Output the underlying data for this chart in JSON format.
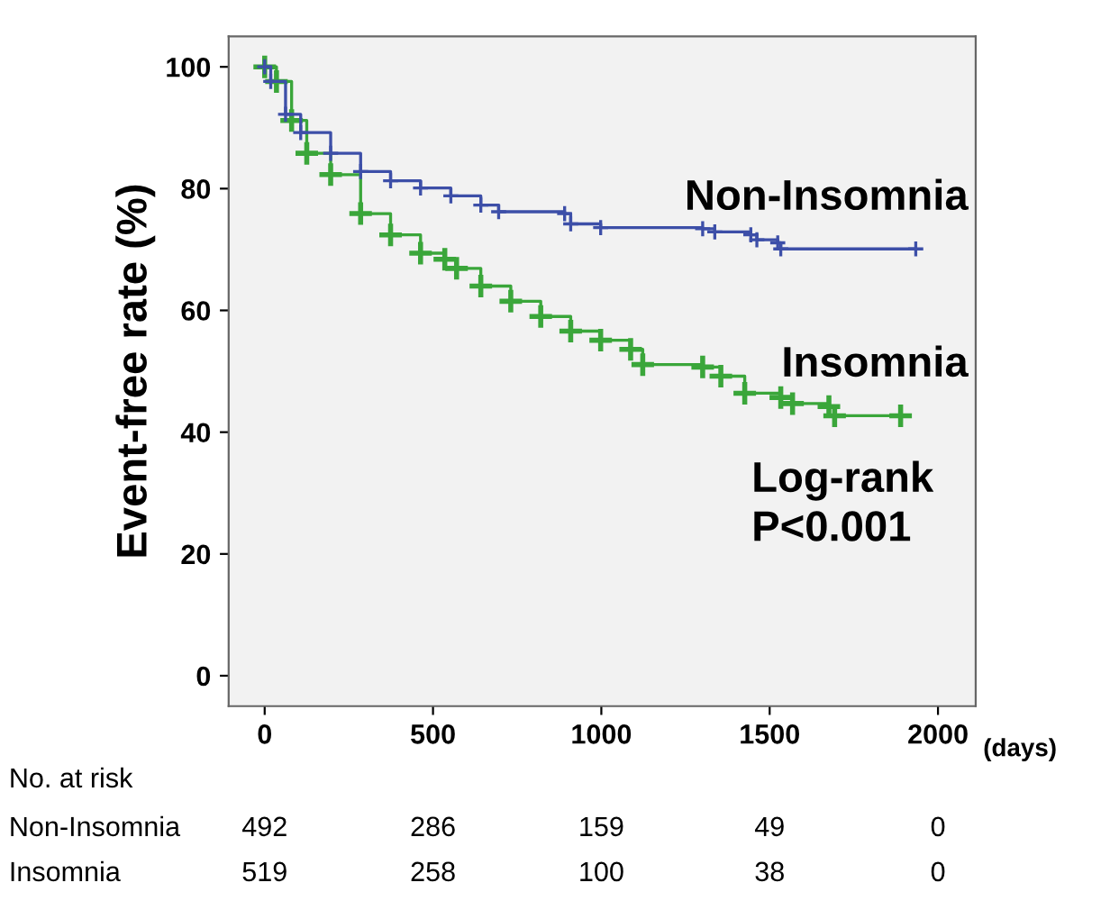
{
  "chart_data": {
    "type": "step",
    "ylabel": "Event-free rate (%)",
    "xlabel": "(days)",
    "xlim": [
      -107,
      2112
    ],
    "ylim": [
      -5,
      105
    ],
    "xticks": [
      0,
      500,
      1000,
      1500,
      2000
    ],
    "yticks": [
      0,
      20,
      40,
      60,
      80,
      100
    ],
    "grid": false,
    "legend": false,
    "marker": "cross",
    "line_style": "solid",
    "series": [
      {
        "name": "Non-Insomnia",
        "color": "#3d4fa8",
        "x": [
          0,
          18,
          62,
          107,
          196,
          285,
          374,
          463,
          553,
          642,
          695,
          891,
          909,
          998,
          1301,
          1337,
          1444,
          1462,
          1524,
          1533,
          1934
        ],
        "values": [
          100,
          97.6,
          92.2,
          89.2,
          85.8,
          82.8,
          81.3,
          80.1,
          78.8,
          77.3,
          76.2,
          75.9,
          74.2,
          73.6,
          73.4,
          72.9,
          72.4,
          71.6,
          71.1,
          70.1,
          70.1
        ]
      },
      {
        "name": "Insomnia",
        "color": "#3aa63a",
        "x": [
          0,
          35,
          80,
          125,
          196,
          285,
          374,
          463,
          535,
          570,
          642,
          731,
          820,
          909,
          998,
          1087,
          1123,
          1301,
          1355,
          1426,
          1533,
          1568,
          1676,
          1693,
          1889
        ],
        "values": [
          100,
          97.6,
          91.2,
          85.8,
          82.3,
          75.9,
          72.4,
          69.4,
          68.4,
          66.9,
          64.0,
          61.5,
          59.0,
          56.6,
          55.1,
          53.6,
          51.1,
          50.7,
          49.2,
          46.4,
          45.7,
          44.7,
          44.2,
          42.7,
          42.7
        ]
      }
    ],
    "annotations": [
      "Log-rank\nP<0.001",
      "No. at risk",
      "Non-Insomnia",
      "492",
      "286",
      "159",
      "49",
      "0",
      "Insomnia",
      "519",
      "258",
      "100",
      "38",
      "0"
    ]
  }
}
